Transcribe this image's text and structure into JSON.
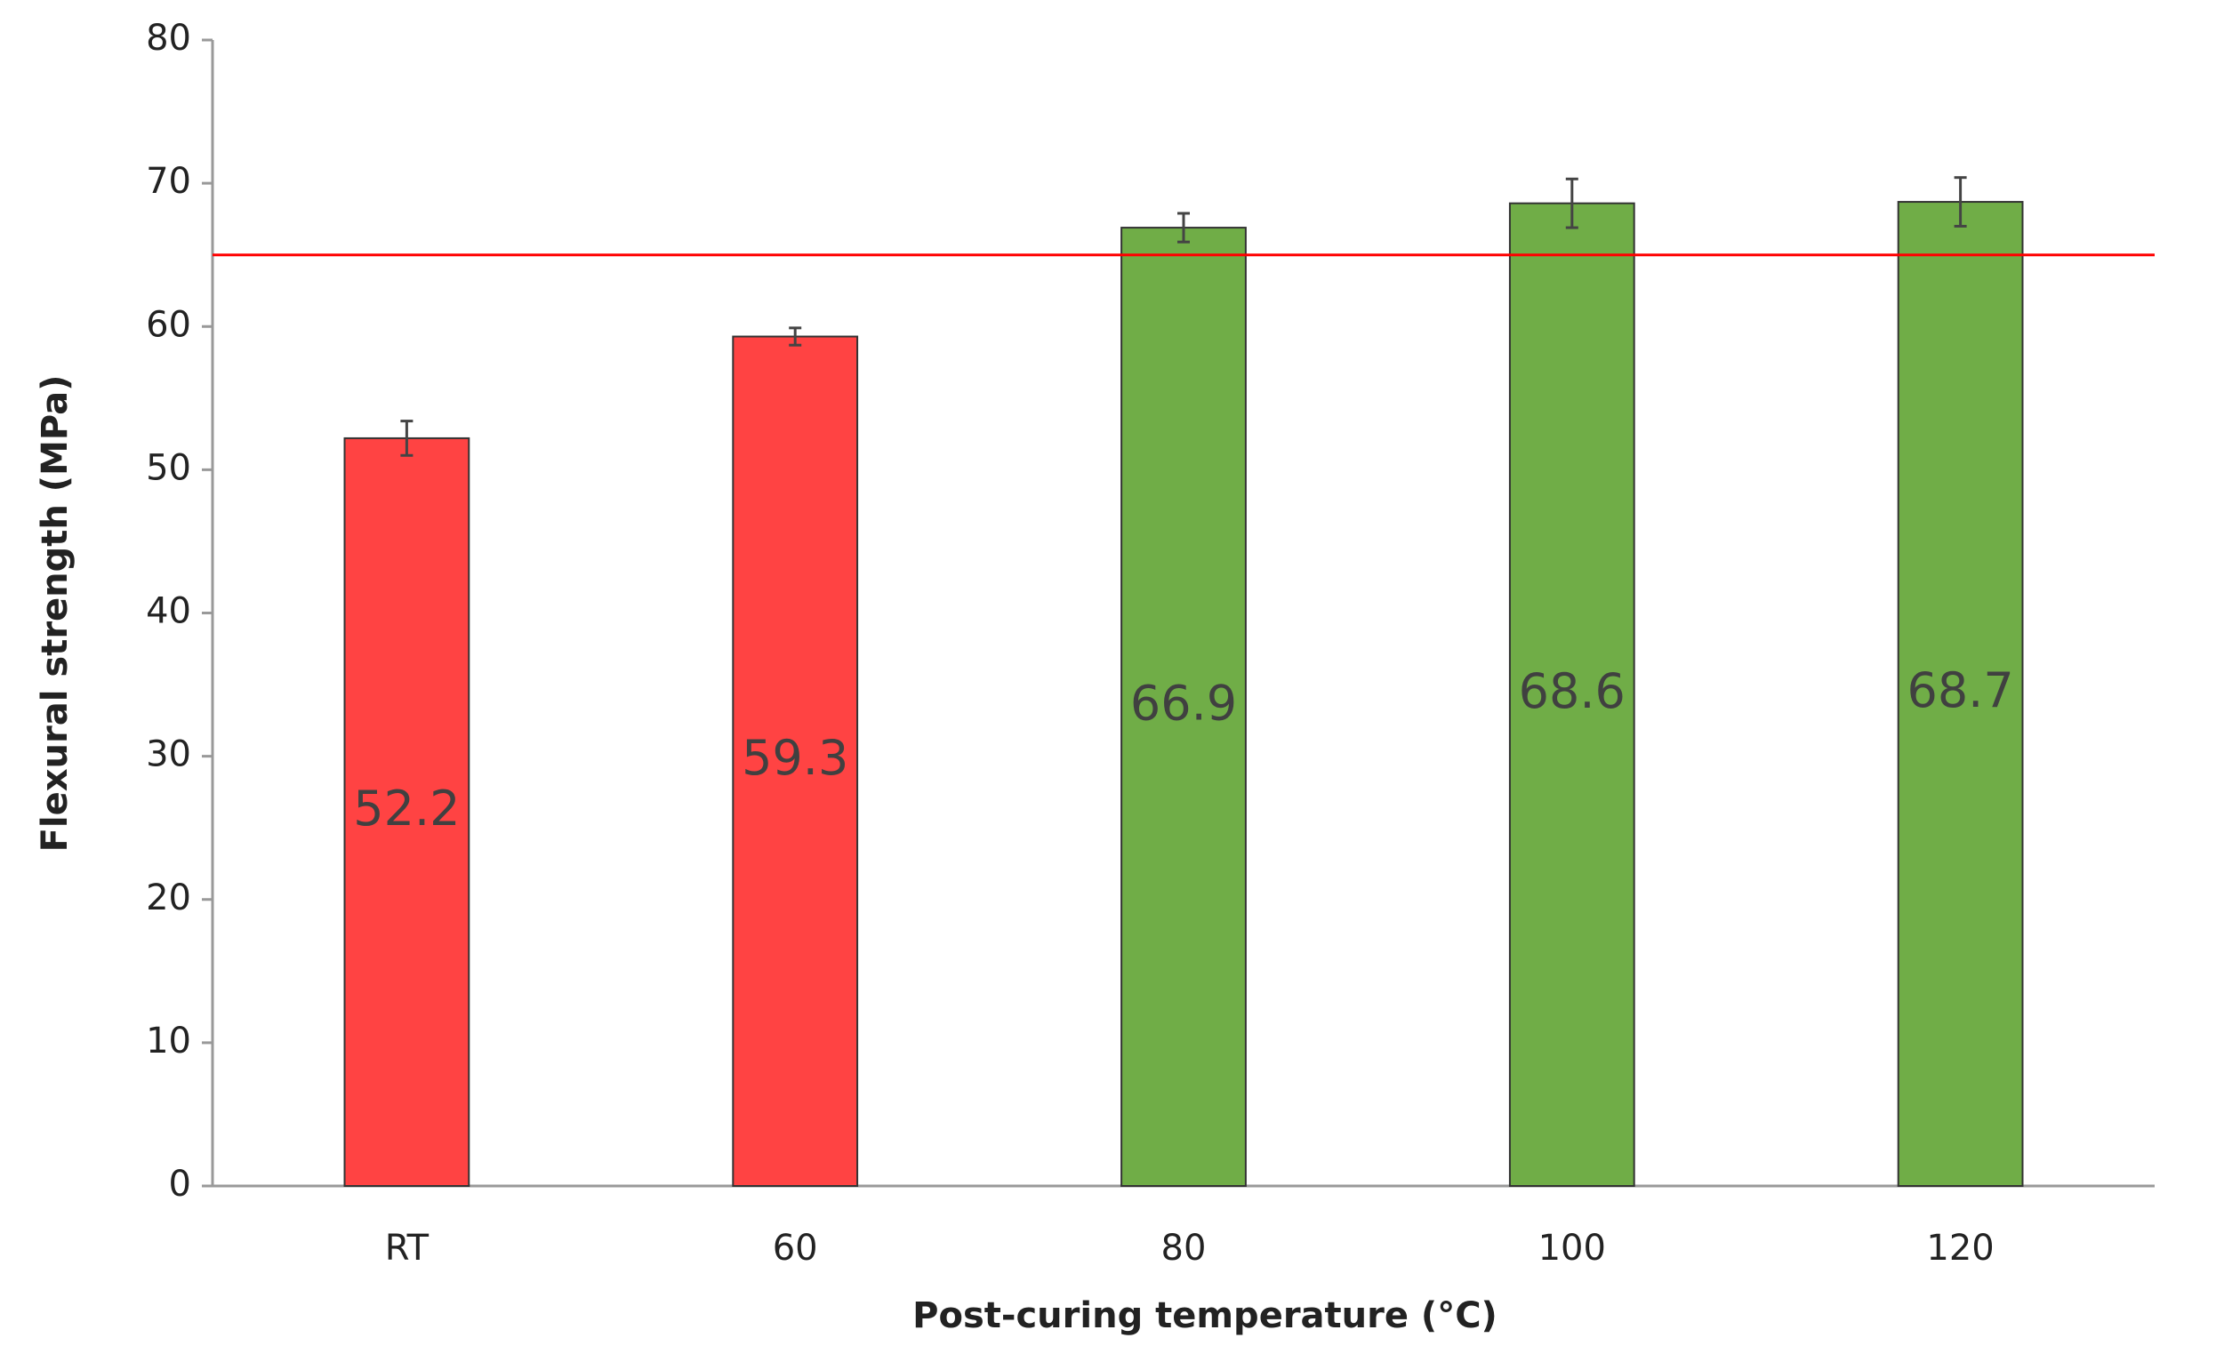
{
  "chart_data": {
    "type": "bar",
    "x_label": "Post-curing temperature (°C)",
    "y_label": "Flexural strength (MPa)",
    "categories": [
      "RT",
      "60",
      "80",
      "100",
      "120"
    ],
    "values": [
      52.2,
      59.3,
      66.9,
      68.6,
      68.7
    ],
    "errors": [
      1.2,
      0.6,
      1.0,
      1.7,
      1.7
    ],
    "colors": [
      "#ff4343",
      "#ff4343",
      "#70ad47",
      "#70ad47",
      "#70ad47"
    ],
    "reference_line": 65,
    "reference_color": "#ff0000",
    "ylim": [
      0,
      80
    ],
    "yticks": [
      0,
      10,
      20,
      30,
      40,
      50,
      60,
      70,
      80
    ],
    "grid": false
  }
}
